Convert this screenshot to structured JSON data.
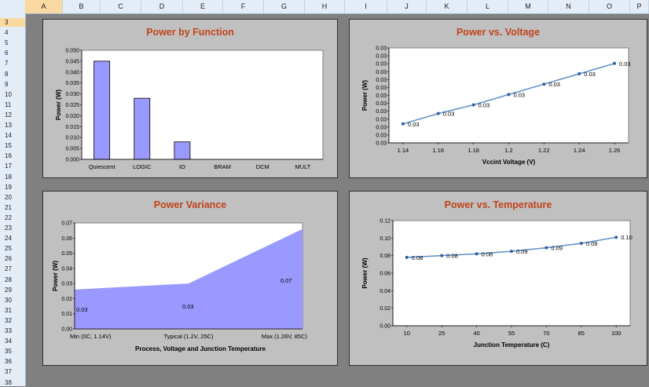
{
  "sheet": {
    "columns": [
      "A",
      "B",
      "C",
      "D",
      "E",
      "F",
      "G",
      "H",
      "I",
      "J",
      "K",
      "L",
      "M",
      "N",
      "O",
      "P"
    ],
    "rows": [
      "3",
      "4",
      "5",
      "6",
      "7",
      "8",
      "9",
      "10",
      "11",
      "12",
      "13",
      "14",
      "15",
      "16",
      "17",
      "18",
      "19",
      "20",
      "21",
      "22",
      "23",
      "24",
      "25",
      "26",
      "27",
      "28",
      "29",
      "30",
      "31",
      "32",
      "33",
      "34",
      "35",
      "36",
      "37",
      "38"
    ]
  },
  "chart_data": [
    {
      "type": "bar",
      "title": "Power by Function",
      "xlabel": "",
      "ylabel": "Power (W)",
      "categories": [
        "Quiescent",
        "LOGIC",
        "IO",
        "BRAM",
        "DCM",
        "MULT"
      ],
      "values": [
        0.045,
        0.028,
        0.008,
        0,
        0,
        0
      ],
      "ylim": [
        0,
        0.05
      ],
      "yticks": [
        "0.000",
        "0.005",
        "0.010",
        "0.015",
        "0.020",
        "0.025",
        "0.030",
        "0.035",
        "0.040",
        "0.045",
        "0.050"
      ],
      "color": "#9999ff"
    },
    {
      "type": "line",
      "title": "Power vs. Voltage",
      "xlabel": "Vccint Voltage (V)",
      "ylabel": "Power (W)",
      "x": [
        1.14,
        1.16,
        1.18,
        1.2,
        1.22,
        1.24,
        1.26
      ],
      "y": [
        0.0257,
        0.0263,
        0.0268,
        0.0274,
        0.028,
        0.0286,
        0.0292
      ],
      "data_labels": [
        "0.03",
        "0.03",
        "0.03",
        "0.03",
        "0.03",
        "0.03",
        "0.03"
      ],
      "xticks": [
        "1.14",
        "1.16",
        "1.18",
        "1.2",
        "1.22",
        "1.24",
        "1.26"
      ],
      "yticks": [
        "0.03",
        "0.03",
        "0.03",
        "0.03",
        "0.03",
        "0.03",
        "0.03",
        "0.03",
        "0.03",
        "0.03",
        "0.03",
        "0.03",
        "0.03"
      ],
      "color": "#5b8fc9"
    },
    {
      "type": "area",
      "title": "Power Variance",
      "xlabel": "Process, Voltage and Junction Temperature",
      "ylabel": "Power (W)",
      "categories": [
        "Min (0C, 1.14V)",
        "Typical (1.2V, 25C)",
        "Max (1.26V, 85C)"
      ],
      "values": [
        0.026,
        0.03,
        0.066
      ],
      "data_labels": [
        "0.03",
        "0.03",
        "0.07"
      ],
      "ylim": [
        0,
        0.07
      ],
      "yticks": [
        "0.00",
        "0.01",
        "0.02",
        "0.03",
        "0.04",
        "0.05",
        "0.06",
        "0.07"
      ],
      "color": "#9999ff"
    },
    {
      "type": "line",
      "title": "Power vs. Temperature",
      "xlabel": "Junction Temperature (C)",
      "ylabel": "Power (W)",
      "x": [
        10,
        25,
        40,
        55,
        70,
        85,
        100
      ],
      "y": [
        0.078,
        0.08,
        0.082,
        0.085,
        0.089,
        0.094,
        0.101
      ],
      "data_labels": [
        "0.08",
        "0.08",
        "0.08",
        "0.09",
        "0.09",
        "0.09",
        "0.10"
      ],
      "xticks": [
        "10",
        "25",
        "40",
        "55",
        "70",
        "85",
        "100"
      ],
      "yticks": [
        "0.00",
        "0.02",
        "0.04",
        "0.06",
        "0.08",
        "0.10",
        "0.12"
      ],
      "ylim": [
        0,
        0.12
      ],
      "color": "#5b8fc9"
    }
  ]
}
